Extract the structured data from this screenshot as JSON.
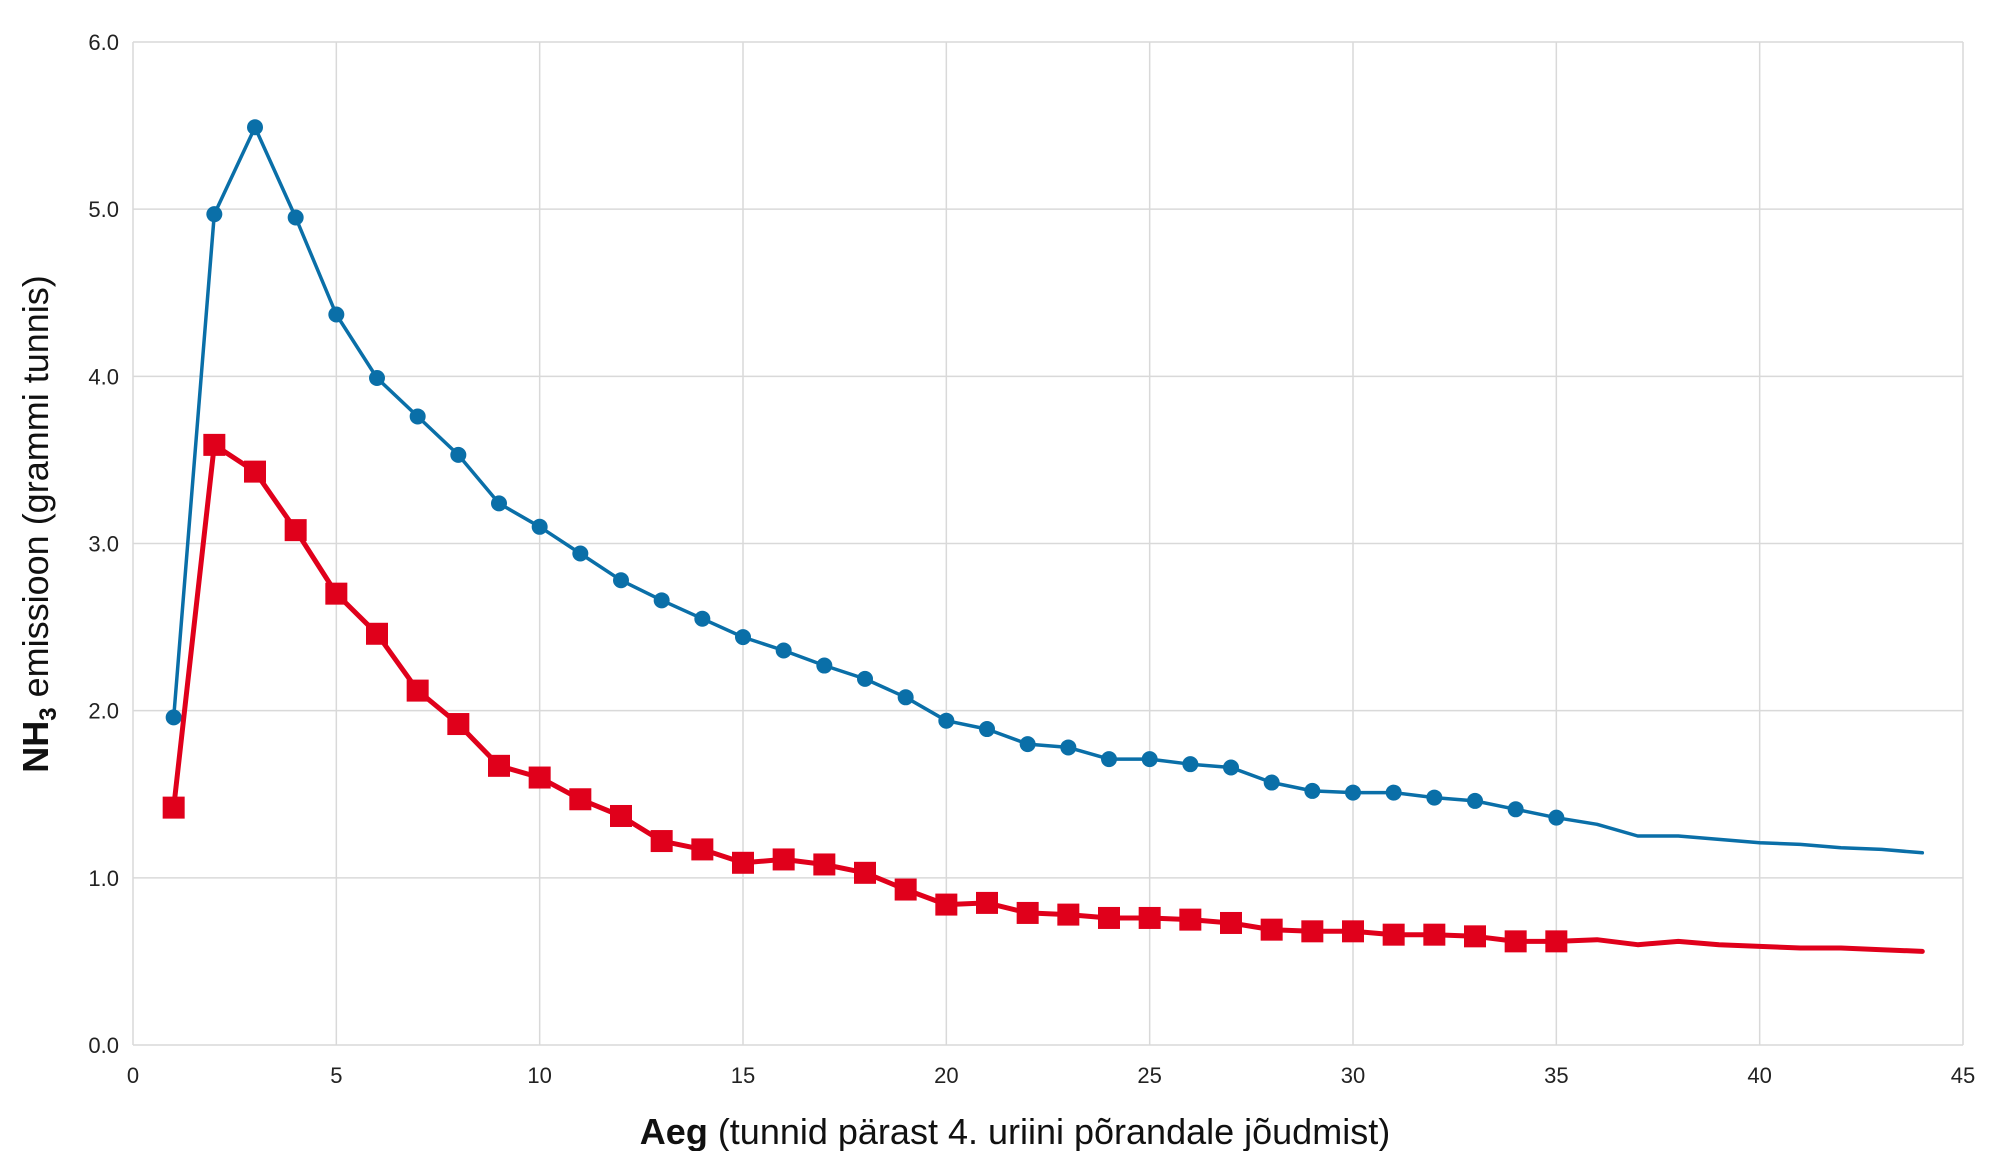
{
  "chart_data": {
    "type": "line",
    "title": "",
    "xlabel": {
      "bold": "Aeg",
      "rest": " (tunnid pärast 4. uriini põrandale jõudmist)"
    },
    "ylabel": {
      "bold_main": "NH",
      "bold_sub": "3",
      "rest": " emissioon (grammi tunnis)"
    },
    "xlim": [
      0,
      45
    ],
    "ylim": [
      0,
      6
    ],
    "x_ticks": [
      0,
      5,
      10,
      15,
      20,
      25,
      30,
      35,
      40,
      45
    ],
    "y_ticks": [
      "0.0",
      "1.0",
      "2.0",
      "3.0",
      "4.0",
      "5.0",
      "6.0"
    ],
    "grid": true,
    "legend": "none",
    "series": [
      {
        "color": "#0a6fa8",
        "marker": "circle",
        "marker_count": 35,
        "x": [
          1,
          2,
          3,
          4,
          5,
          6,
          7,
          8,
          9,
          10,
          11,
          12,
          13,
          14,
          15,
          16,
          17,
          18,
          19,
          20,
          21,
          22,
          23,
          24,
          25,
          26,
          27,
          28,
          29,
          30,
          31,
          32,
          33,
          34,
          35,
          36,
          37,
          38,
          39,
          40,
          41,
          42,
          43,
          44
        ],
        "values": [
          1.96,
          4.97,
          5.49,
          4.95,
          4.37,
          3.99,
          3.76,
          3.53,
          3.24,
          3.1,
          2.94,
          2.78,
          2.66,
          2.55,
          2.44,
          2.36,
          2.27,
          2.19,
          2.08,
          1.94,
          1.89,
          1.8,
          1.78,
          1.71,
          1.71,
          1.68,
          1.66,
          1.57,
          1.52,
          1.51,
          1.51,
          1.48,
          1.46,
          1.41,
          1.36,
          1.32,
          1.25,
          1.25,
          1.23,
          1.21,
          1.2,
          1.18,
          1.17,
          1.15
        ]
      },
      {
        "color": "#e0001b",
        "marker": "square",
        "marker_count": 35,
        "x": [
          1,
          2,
          3,
          4,
          5,
          6,
          7,
          8,
          9,
          10,
          11,
          12,
          13,
          14,
          15,
          16,
          17,
          18,
          19,
          20,
          21,
          22,
          23,
          24,
          25,
          26,
          27,
          28,
          29,
          30,
          31,
          32,
          33,
          34,
          35,
          36,
          37,
          38,
          39,
          40,
          41,
          42,
          43,
          44
        ],
        "values": [
          1.42,
          3.59,
          3.43,
          3.08,
          2.7,
          2.46,
          2.12,
          1.92,
          1.67,
          1.6,
          1.47,
          1.37,
          1.22,
          1.17,
          1.09,
          1.11,
          1.08,
          1.03,
          0.93,
          0.84,
          0.85,
          0.79,
          0.78,
          0.76,
          0.76,
          0.75,
          0.73,
          0.69,
          0.68,
          0.68,
          0.66,
          0.66,
          0.65,
          0.62,
          0.62,
          0.63,
          0.6,
          0.62,
          0.6,
          0.59,
          0.58,
          0.58,
          0.57,
          0.56
        ]
      }
    ]
  }
}
